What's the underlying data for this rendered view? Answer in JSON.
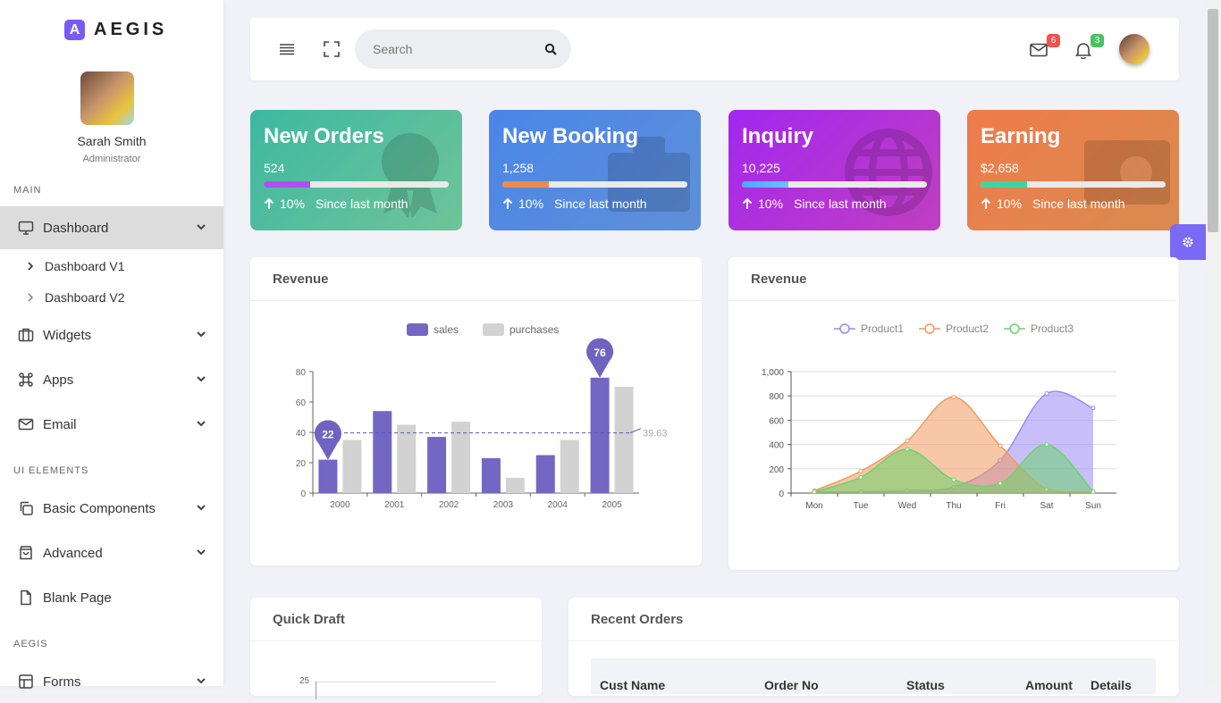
{
  "app": {
    "logo_letter": "A",
    "name": "AEGIS"
  },
  "user": {
    "name": "Sarah Smith",
    "role": "Administrator"
  },
  "sidebar": {
    "section_main": "MAIN",
    "dashboard": "Dashboard",
    "dashboard_v1": "Dashboard V1",
    "dashboard_v2": "Dashboard V2",
    "widgets": "Widgets",
    "apps": "Apps",
    "email": "Email",
    "section_ui": "UI ELEMENTS",
    "basic_components": "Basic Components",
    "advanced": "Advanced",
    "blank_page": "Blank Page",
    "section_aegis": "AEGIS",
    "forms": "Forms"
  },
  "header": {
    "search_placeholder": "Search",
    "mail_count": "6",
    "notification_count": "3",
    "mail_badge_color": "#f0504f",
    "notification_badge_color": "#4cc164"
  },
  "stats": [
    {
      "title": "New Orders",
      "value": "524",
      "change": "10%",
      "period": "Since last month",
      "progress_pct": 25,
      "bg_from": "#3db8a0",
      "bg_to": "#6fc49a",
      "fill": "#b04ff0"
    },
    {
      "title": "New Booking",
      "value": "1,258",
      "change": "10%",
      "period": "Since last month",
      "progress_pct": 25,
      "bg_from": "#4a86e8",
      "bg_to": "#5f8fd8",
      "fill": "#f08a4b"
    },
    {
      "title": "Inquiry",
      "value": "10,225",
      "change": "10%",
      "period": "Since last month",
      "progress_pct": 25,
      "bg_from": "#a327ef",
      "bg_to": "#c03fc0",
      "fill": "#4aa8ff"
    },
    {
      "title": "Earning",
      "value": "$2,658",
      "change": "10%",
      "period": "Since last month",
      "progress_pct": 25,
      "bg_from": "#ef7c4b",
      "bg_to": "#d98a50",
      "fill": "#3ad6a0"
    }
  ],
  "revenue1": {
    "title": "Revenue",
    "chart_data": {
      "type": "bar",
      "categories": [
        "2000",
        "2001",
        "2002",
        "2003",
        "2004",
        "2005"
      ],
      "series": [
        {
          "name": "sales",
          "values": [
            22,
            54,
            37,
            23,
            25,
            76
          ],
          "color": "#7367c3"
        },
        {
          "name": "purchases",
          "values": [
            35,
            45,
            47,
            10,
            35,
            70
          ],
          "color": "#d2d2d2"
        }
      ],
      "ylim": [
        0,
        80
      ],
      "yticks": [
        0,
        20,
        40,
        60,
        80
      ],
      "markers": [
        {
          "category": "2000",
          "label": "22"
        },
        {
          "category": "2005",
          "label": "76"
        }
      ],
      "average_line": {
        "value": 39.6,
        "label": "39.63"
      },
      "legend": "top-center"
    }
  },
  "revenue2": {
    "title": "Revenue",
    "chart_data": {
      "type": "area",
      "categories": [
        "Mon",
        "Tue",
        "Wed",
        "Thu",
        "Fri",
        "Sat",
        "Sun"
      ],
      "series": [
        {
          "name": "Product1",
          "values": [
            10,
            10,
            20,
            50,
            270,
            820,
            700
          ],
          "color": "#9a8af5"
        },
        {
          "name": "Product2",
          "values": [
            20,
            180,
            430,
            790,
            390,
            30,
            10
          ],
          "color": "#f0995e"
        },
        {
          "name": "Product3",
          "values": [
            10,
            130,
            360,
            110,
            80,
            400,
            10
          ],
          "color": "#6cd26c"
        }
      ],
      "ylim": [
        0,
        1000
      ],
      "ytick_labels": [
        "0",
        "200",
        "400",
        "600",
        "800",
        "1,000"
      ],
      "legend": "top-center"
    }
  },
  "quick_draft": {
    "title": "Quick Draft",
    "axis_label": "25"
  },
  "recent_orders": {
    "title": "Recent Orders",
    "columns": [
      "Cust Name",
      "Order No",
      "Status",
      "Amount",
      "Details"
    ]
  },
  "colors": {
    "accent": "#7a5af5",
    "gear": "#7a6af5"
  }
}
